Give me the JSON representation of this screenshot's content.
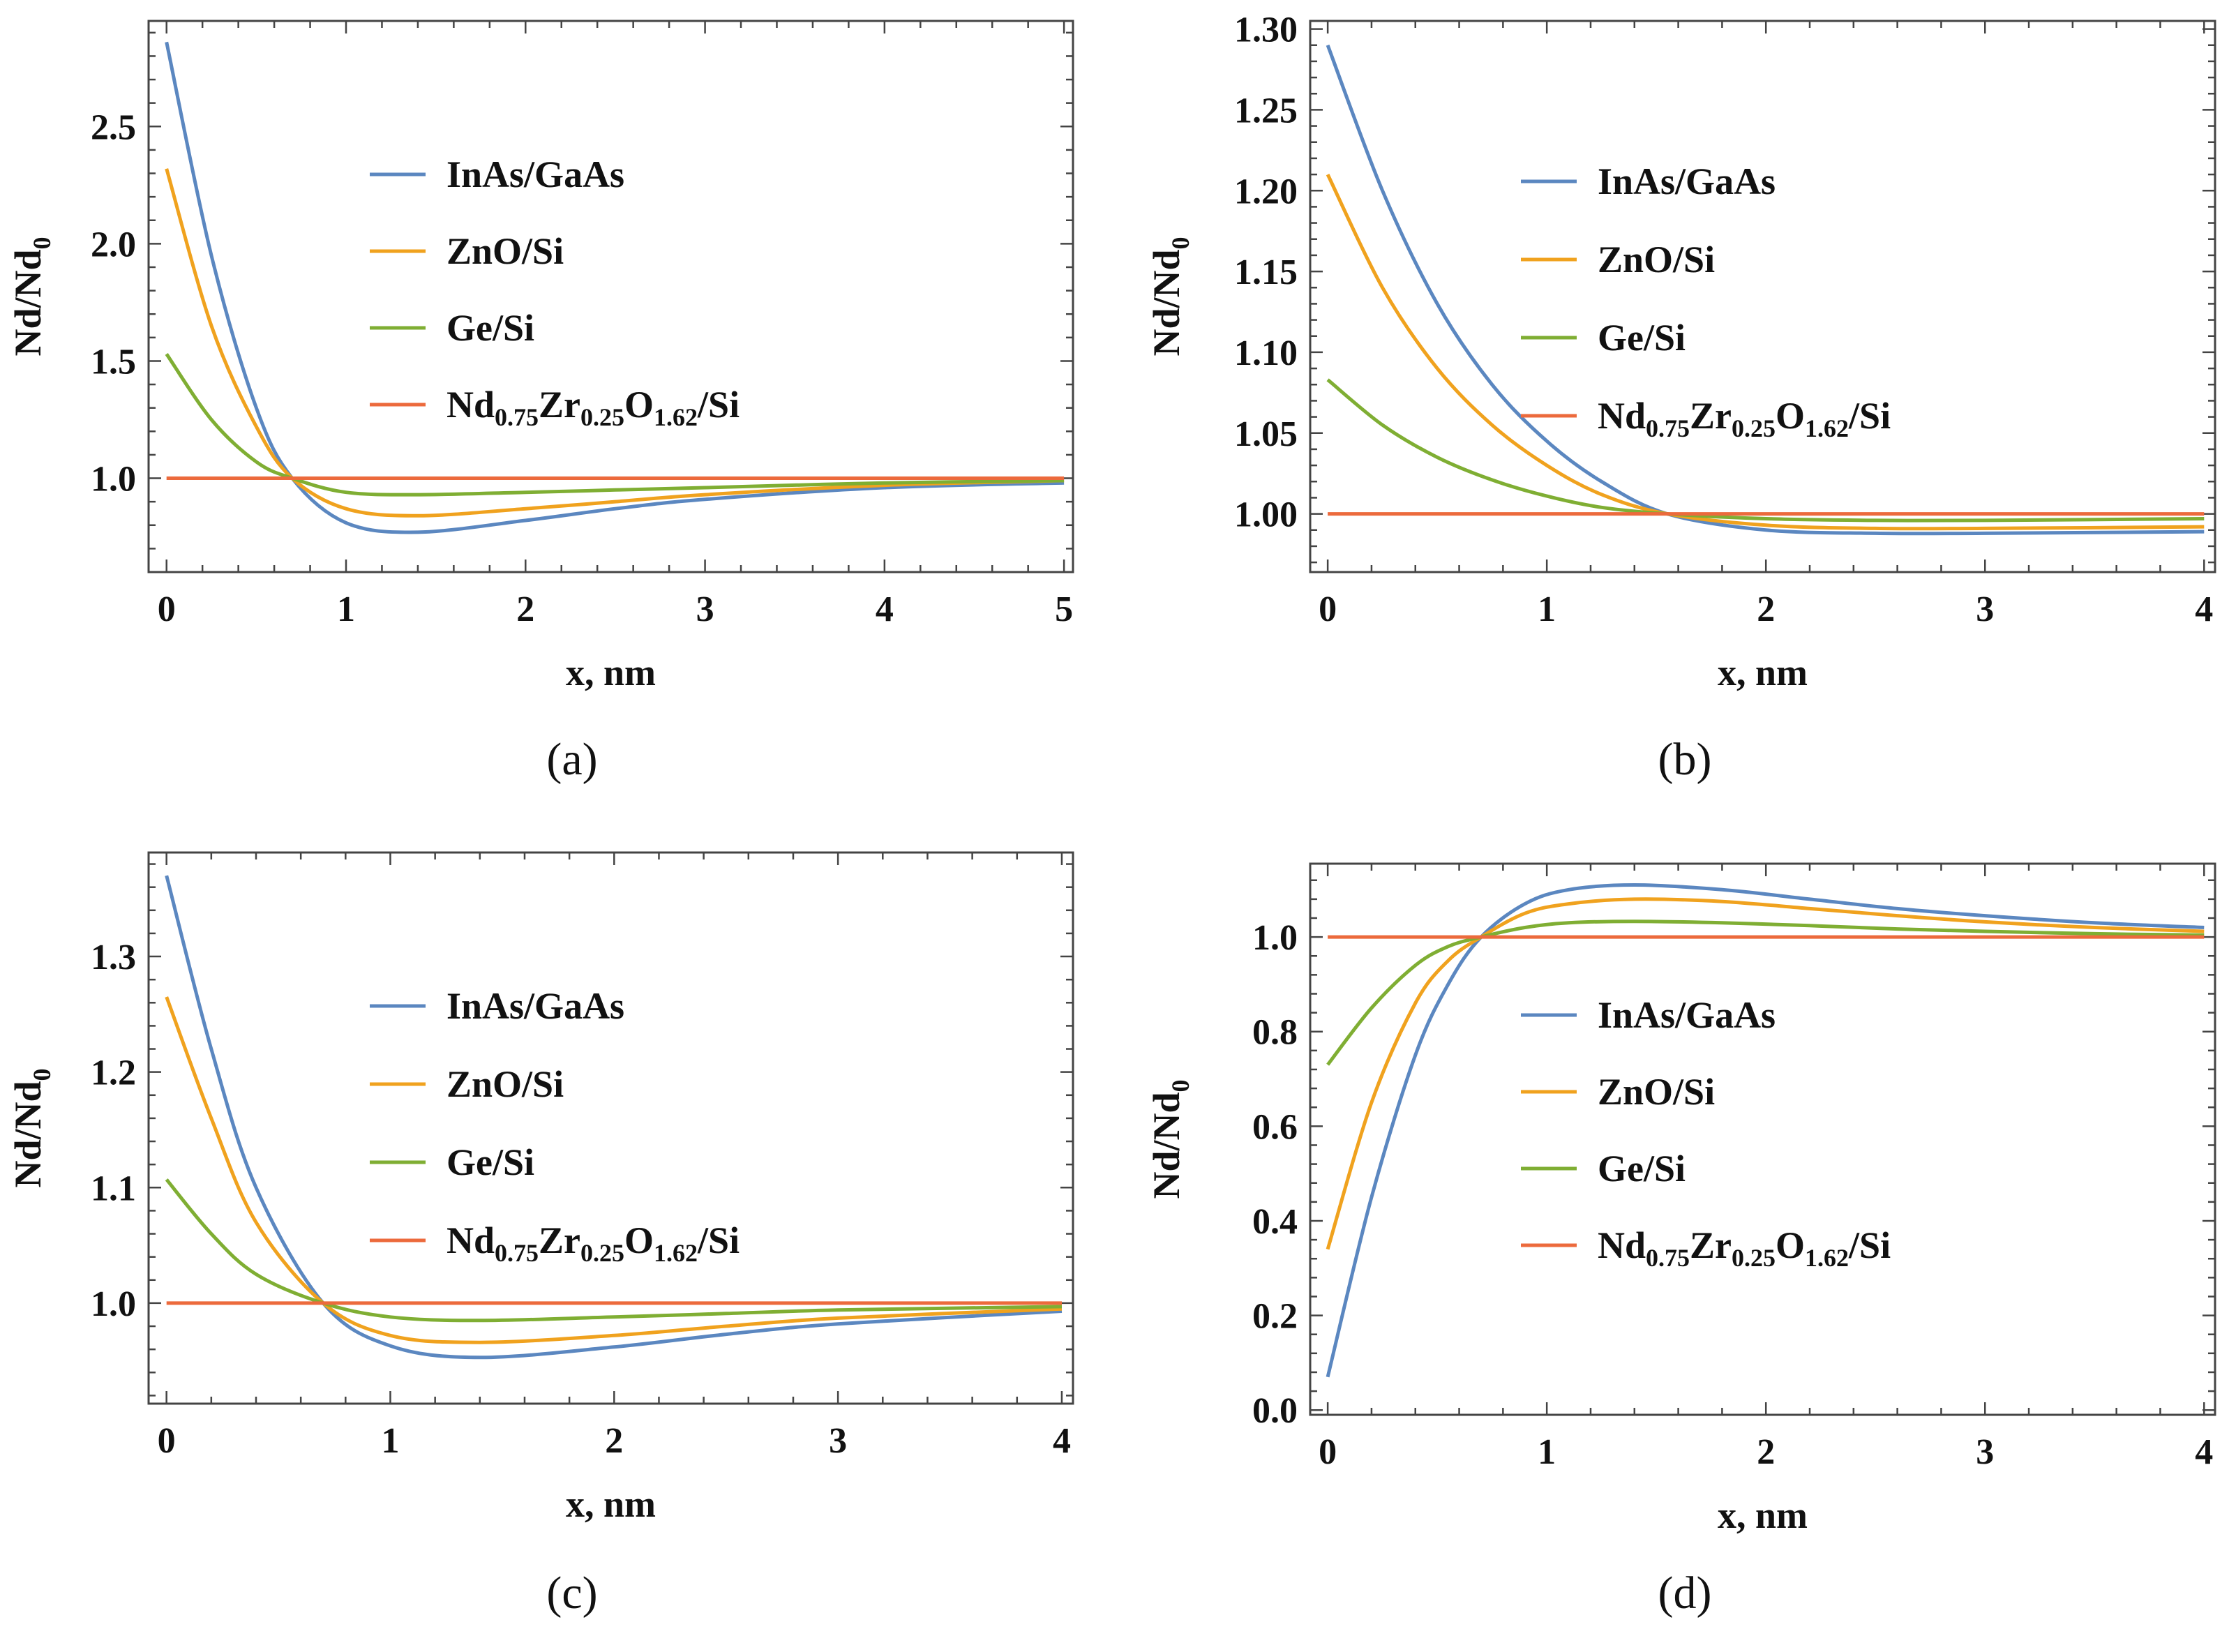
{
  "legend": {
    "series": [
      {
        "key": "inas",
        "label": "InAs/GaAs",
        "color": "#5b87c0"
      },
      {
        "key": "zno",
        "label": "ZnO/Si",
        "color": "#f0a21e"
      },
      {
        "key": "ge",
        "label": "Ge/Si",
        "color": "#7fae33"
      },
      {
        "key": "ndzr",
        "label": "Nd0.75Zr0.25O1.62/Si",
        "color": "#ec6a3c"
      }
    ],
    "ndzr_parts": {
      "a": "Nd",
      "a_sub": "0.75",
      "b": "Zr",
      "b_sub": "0.25",
      "c": "O",
      "c_sub": "1.62",
      "d": "/Si"
    }
  },
  "ylabel_parts": {
    "main": "Nd/Nd",
    "sub": "0"
  },
  "chart_data": [
    {
      "type": "line",
      "panel": "(a)",
      "xlabel": "x, nm",
      "ylabel": "Nd/Nd0",
      "xlim": [
        -0.1,
        5.05
      ],
      "ylim": [
        0.6,
        2.95
      ],
      "xticks": [
        0,
        1,
        2,
        3,
        4,
        5
      ],
      "yticks": [
        1.0,
        1.5,
        2.0,
        2.5
      ],
      "tick_decimals": 1,
      "legend_position": "upper-center",
      "series": [
        {
          "name": "InAs/GaAs",
          "x": [
            0,
            0.25,
            0.5,
            0.7,
            1.0,
            1.4,
            2.0,
            2.5,
            3.0,
            4.0,
            5.0
          ],
          "values": [
            2.86,
            1.95,
            1.3,
            1.0,
            0.81,
            0.77,
            0.82,
            0.87,
            0.91,
            0.96,
            0.98
          ]
        },
        {
          "name": "ZnO/Si",
          "x": [
            0,
            0.25,
            0.5,
            0.7,
            1.0,
            1.4,
            2.0,
            2.5,
            3.0,
            4.0,
            5.0
          ],
          "values": [
            2.32,
            1.65,
            1.22,
            1.0,
            0.87,
            0.84,
            0.87,
            0.9,
            0.93,
            0.97,
            0.99
          ]
        },
        {
          "name": "Ge/Si",
          "x": [
            0,
            0.25,
            0.5,
            0.7,
            1.0,
            1.4,
            2.0,
            2.5,
            3.0,
            4.0,
            5.0
          ],
          "values": [
            1.53,
            1.25,
            1.07,
            1.0,
            0.94,
            0.93,
            0.94,
            0.95,
            0.96,
            0.98,
            0.99
          ]
        },
        {
          "name": "Nd0.75Zr0.25O1.62/Si",
          "x": [
            0,
            5.0
          ],
          "values": [
            1.0,
            1.0
          ]
        }
      ]
    },
    {
      "type": "line",
      "panel": "(b)",
      "xlabel": "x, nm",
      "ylabel": "Nd/Nd0",
      "xlim": [
        -0.08,
        4.05
      ],
      "ylim": [
        0.964,
        1.305
      ],
      "xticks": [
        0,
        1,
        2,
        3,
        4
      ],
      "yticks": [
        1.0,
        1.05,
        1.1,
        1.15,
        1.2,
        1.25,
        1.3
      ],
      "tick_decimals": 2,
      "legend_position": "upper-center",
      "series": [
        {
          "name": "InAs/GaAs",
          "x": [
            0,
            0.25,
            0.5,
            0.75,
            1.0,
            1.25,
            1.55,
            2.0,
            2.5,
            3.0,
            4.0
          ],
          "values": [
            1.29,
            1.2,
            1.13,
            1.08,
            1.045,
            1.02,
            1.0,
            0.99,
            0.988,
            0.988,
            0.989
          ]
        },
        {
          "name": "ZnO/Si",
          "x": [
            0,
            0.25,
            0.5,
            0.75,
            1.0,
            1.25,
            1.55,
            2.0,
            2.5,
            3.0,
            4.0
          ],
          "values": [
            1.21,
            1.14,
            1.09,
            1.055,
            1.03,
            1.012,
            1.0,
            0.993,
            0.991,
            0.991,
            0.992
          ]
        },
        {
          "name": "Ge/Si",
          "x": [
            0,
            0.25,
            0.5,
            0.75,
            1.0,
            1.25,
            1.55,
            2.0,
            2.5,
            3.0,
            4.0
          ],
          "values": [
            1.083,
            1.055,
            1.035,
            1.021,
            1.011,
            1.004,
            1.0,
            0.997,
            0.996,
            0.996,
            0.997
          ]
        },
        {
          "name": "Nd0.75Zr0.25O1.62/Si",
          "x": [
            0,
            4.0
          ],
          "values": [
            1.0,
            1.0
          ]
        }
      ]
    },
    {
      "type": "line",
      "panel": "(c)",
      "xlabel": "x, nm",
      "ylabel": "Nd/Nd0",
      "xlim": [
        -0.08,
        4.05
      ],
      "ylim": [
        0.913,
        1.39
      ],
      "xticks": [
        0,
        1,
        2,
        3,
        4
      ],
      "yticks": [
        1.0,
        1.1,
        1.2,
        1.3
      ],
      "tick_decimals": 1,
      "legend_position": "middle-center",
      "series": [
        {
          "name": "InAs/GaAs",
          "x": [
            0,
            0.2,
            0.4,
            0.7,
            1.0,
            1.4,
            2.0,
            2.5,
            3.0,
            4.0
          ],
          "values": [
            1.37,
            1.22,
            1.1,
            1.0,
            0.963,
            0.953,
            0.962,
            0.973,
            0.982,
            0.993
          ]
        },
        {
          "name": "ZnO/Si",
          "x": [
            0,
            0.2,
            0.4,
            0.7,
            1.0,
            1.4,
            2.0,
            2.5,
            3.0,
            4.0
          ],
          "values": [
            1.265,
            1.16,
            1.07,
            1.0,
            0.972,
            0.966,
            0.972,
            0.98,
            0.987,
            0.995
          ]
        },
        {
          "name": "Ge/Si",
          "x": [
            0,
            0.2,
            0.4,
            0.7,
            1.0,
            1.4,
            2.0,
            2.5,
            3.0,
            4.0
          ],
          "values": [
            1.107,
            1.06,
            1.025,
            1.0,
            0.988,
            0.985,
            0.988,
            0.991,
            0.994,
            0.997
          ]
        },
        {
          "name": "Nd0.75Zr0.25O1.62/Si",
          "x": [
            0,
            4.0
          ],
          "values": [
            1.0,
            1.0
          ]
        }
      ]
    },
    {
      "type": "line",
      "panel": "(d)",
      "xlabel": "x, nm",
      "ylabel": "Nd/Nd0",
      "xlim": [
        -0.08,
        4.05
      ],
      "ylim": [
        -0.01,
        1.155
      ],
      "xticks": [
        0,
        1,
        2,
        3,
        4
      ],
      "yticks": [
        0.0,
        0.2,
        0.4,
        0.6,
        0.8,
        1.0
      ],
      "tick_decimals": 1,
      "legend_position": "middle-center",
      "series": [
        {
          "name": "InAs/GaAs",
          "x": [
            0,
            0.2,
            0.4,
            0.55,
            0.7,
            0.9,
            1.1,
            1.4,
            1.8,
            2.2,
            2.6,
            3.0,
            3.5,
            4.0
          ],
          "values": [
            0.07,
            0.45,
            0.75,
            0.9,
            1.0,
            1.07,
            1.1,
            1.11,
            1.1,
            1.08,
            1.06,
            1.045,
            1.03,
            1.02
          ]
        },
        {
          "name": "ZnO/Si",
          "x": [
            0,
            0.2,
            0.4,
            0.55,
            0.7,
            0.9,
            1.1,
            1.4,
            1.8,
            2.2,
            2.6,
            3.0,
            3.5,
            4.0
          ],
          "values": [
            0.34,
            0.65,
            0.86,
            0.95,
            1.0,
            1.05,
            1.07,
            1.08,
            1.075,
            1.06,
            1.045,
            1.032,
            1.02,
            1.012
          ]
        },
        {
          "name": "Ge/Si",
          "x": [
            0,
            0.2,
            0.4,
            0.55,
            0.7,
            0.9,
            1.1,
            1.4,
            1.8,
            2.2,
            2.6,
            3.0,
            3.5,
            4.0
          ],
          "values": [
            0.73,
            0.85,
            0.94,
            0.98,
            1.0,
            1.02,
            1.03,
            1.033,
            1.03,
            1.024,
            1.017,
            1.012,
            1.007,
            1.004
          ]
        },
        {
          "name": "Nd0.75Zr0.25O1.62/Si",
          "x": [
            0,
            4.0
          ],
          "values": [
            1.0,
            1.0
          ]
        }
      ]
    }
  ]
}
